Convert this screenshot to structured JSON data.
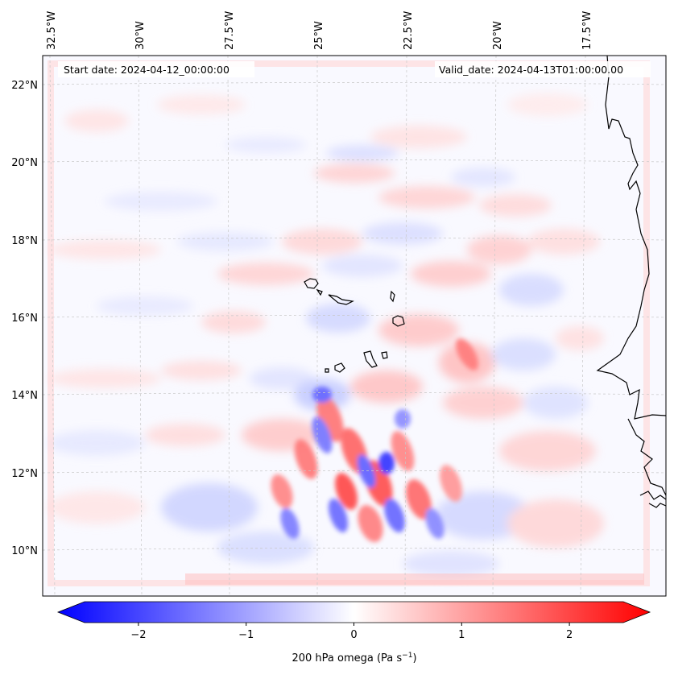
{
  "header": {
    "start_date": "Start date: 2024-04-12_00:00:00",
    "valid_date": "Valid_date: 2024-04-13T01:00:00.00"
  },
  "map": {
    "lon_labels": [
      "32.5°W",
      "30°W",
      "27.5°W",
      "25°W",
      "22.5°W",
      "20°W",
      "17.5°W"
    ],
    "lat_labels": [
      "22°N",
      "20°N",
      "18°N",
      "16°N",
      "14°N",
      "12°N",
      "10°N"
    ],
    "coast_color": "#000000",
    "grid_color": "#c8c8c8"
  },
  "colorbar": {
    "min": -2.5,
    "max": 2.5,
    "ticks": [
      "−2",
      "−1",
      "0",
      "1",
      "2"
    ],
    "tick_values": [
      -2,
      -1,
      0,
      1,
      2
    ],
    "colors": {
      "negative": "#0000ff",
      "zero": "#ffffff",
      "positive": "#ff0000"
    },
    "label_main": "200 hPa omega (Pa s",
    "label_sup": "−1",
    "label_end": ")"
  }
}
